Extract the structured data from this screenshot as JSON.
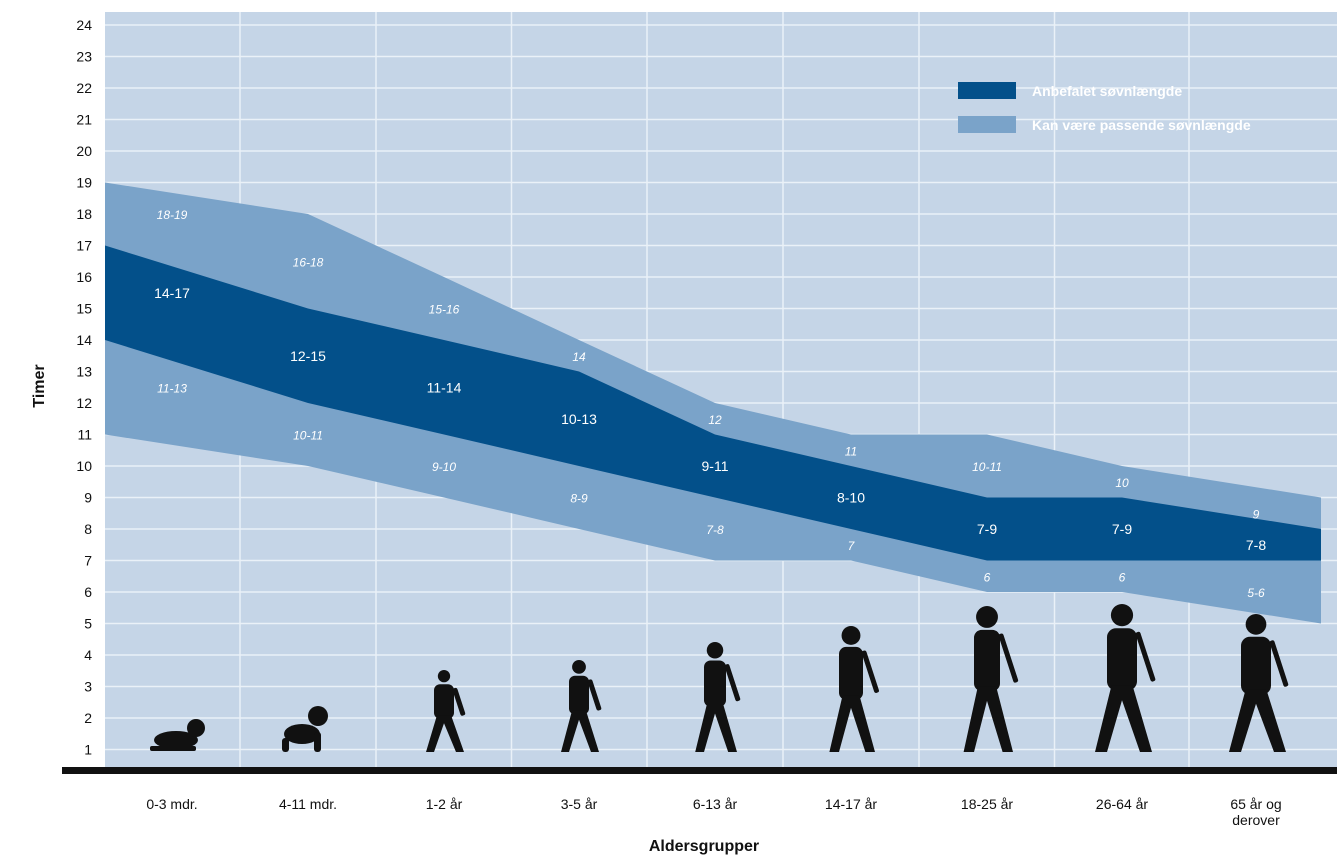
{
  "chart_data": {
    "type": "area",
    "ylabel": "Timer",
    "xlabel": "Aldersgrupper",
    "ylim": [
      0,
      24
    ],
    "y_ticks": [
      "1",
      "2",
      "3",
      "4",
      "5",
      "6",
      "7",
      "8",
      "9",
      "10",
      "11",
      "12",
      "13",
      "14",
      "15",
      "16",
      "17",
      "18",
      "19",
      "20",
      "21",
      "22",
      "23",
      "24"
    ],
    "categories": [
      "0-3 mdr.",
      "4-11 mdr.",
      "1-2 år",
      "3-5 år",
      "6-13 år",
      "14-17 år",
      "18-25 år",
      "26-64 år",
      "65 år og derover"
    ],
    "series": [
      {
        "name": "Anbefalet søvnlængde",
        "low": [
          14,
          12,
          11,
          10,
          9,
          8,
          7,
          7,
          7
        ],
        "high": [
          17,
          15,
          14,
          13,
          11,
          10,
          9,
          9,
          8
        ],
        "labels": [
          "14-17",
          "12-15",
          "11-14",
          "10-13",
          "9-11",
          "8-10",
          "7-9",
          "7-9",
          "7-8"
        ]
      },
      {
        "name": "Kan være passende søvnlængde",
        "low": [
          11,
          10,
          9,
          8,
          7,
          7,
          6,
          6,
          5
        ],
        "high": [
          19,
          18,
          16,
          14,
          12,
          11,
          11,
          10,
          9
        ],
        "upper_labels": [
          "18-19",
          "16-18",
          "15-16",
          "14",
          "12",
          "11",
          "10-11",
          "10",
          "9"
        ],
        "lower_labels": [
          "11-13",
          "10-11",
          "9-10",
          "8-9",
          "7-8",
          "7",
          "6",
          "6",
          "5-6"
        ]
      }
    ],
    "legend_position": "top-right",
    "grid": true,
    "colors": {
      "background": "#c5d5e7",
      "grid": "#eaf1f8",
      "recommended": "#03508a",
      "may_be_appropriate": "#7aa3c9",
      "axis_line": "#111111",
      "silhouette": "#111111"
    },
    "figures": [
      "baby-crawling",
      "baby-crawling",
      "toddler",
      "child",
      "child",
      "teen",
      "woman",
      "adult",
      "older-adult"
    ]
  }
}
